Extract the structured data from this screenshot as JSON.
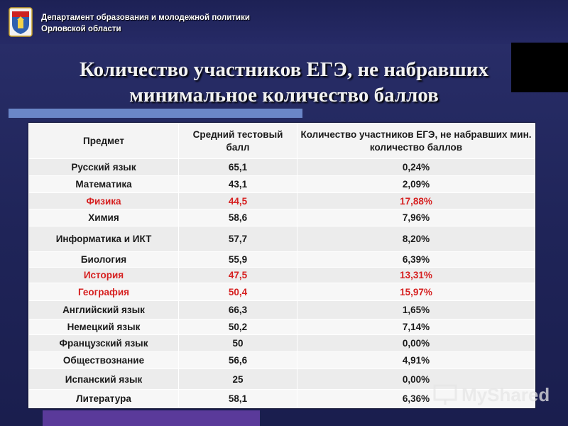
{
  "header": {
    "dept_line1": "Департамент образования и молодежной политики",
    "dept_line2": "Орловской области"
  },
  "title": {
    "line1": "Количество участников ЕГЭ, не набравших",
    "line2": "минимальное количество баллов"
  },
  "table": {
    "headers": [
      "Предмет",
      "Средний тестовый балл",
      "Количество участников ЕГЭ, не набравших мин. количество баллов"
    ],
    "rows": [
      {
        "subject": "Русский язык",
        "score": "65,1",
        "percent": "0,24%",
        "highlight": false
      },
      {
        "subject": "Математика",
        "score": "43,1",
        "percent": "2,09%",
        "highlight": false
      },
      {
        "subject": "Физика",
        "score": "44,5",
        "percent": "17,88%",
        "highlight": true
      },
      {
        "subject": "Химия",
        "score": "58,6",
        "percent": "7,96%",
        "highlight": false
      },
      {
        "subject": "Информатика и ИКТ",
        "score": "57,7",
        "percent": "8,20%",
        "highlight": false
      },
      {
        "subject": "Биология",
        "score": "55,9",
        "percent": "6,39%",
        "highlight": false
      },
      {
        "subject": "История",
        "score": "47,5",
        "percent": "13,31%",
        "highlight": true
      },
      {
        "subject": "География",
        "score": "50,4",
        "percent": "15,97%",
        "highlight": true
      },
      {
        "subject": "Английский язык",
        "score": "66,3",
        "percent": "1,65%",
        "highlight": false
      },
      {
        "subject": "Немецкий язык",
        "score": "50,2",
        "percent": "7,14%",
        "highlight": false
      },
      {
        "subject": "Французский язык",
        "score": "50",
        "percent": "0,00%",
        "highlight": false
      },
      {
        "subject": "Обществознание",
        "score": "56,6",
        "percent": "4,91%",
        "highlight": false
      },
      {
        "subject": "Испанский язык",
        "score": "25",
        "percent": "0,00%",
        "highlight": false
      },
      {
        "subject": "Литература",
        "score": "58,1",
        "percent": "6,36%",
        "highlight": false
      }
    ]
  },
  "watermark": {
    "text": "MyShared"
  },
  "colors": {
    "highlight": "#d62020",
    "accent_bar": "#6a86c8",
    "background": "#2a2f6b"
  }
}
